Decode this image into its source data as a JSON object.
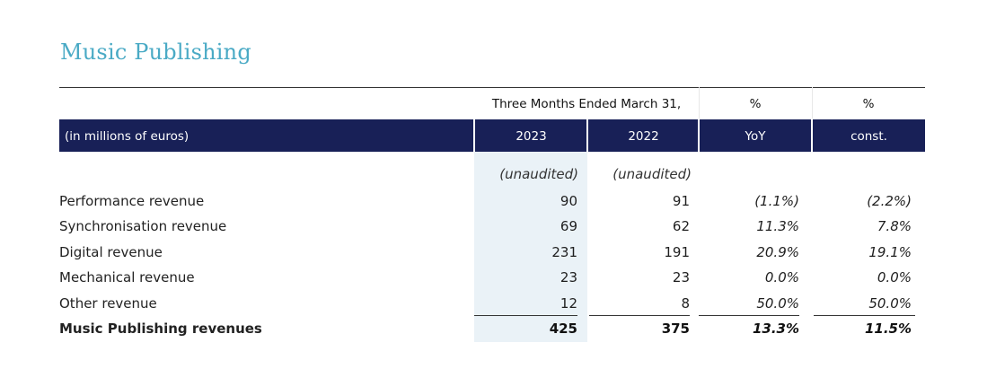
{
  "title": "Music Publishing",
  "header": {
    "period": "Three Months Ended March 31,",
    "pct_yoy": "%",
    "pct_const": "%",
    "units": "(in millions of euros)",
    "col_2023": "2023",
    "col_2022": "2022",
    "col_yoy": "YoY",
    "col_const": "const.",
    "unaudited_2023": "(unaudited)",
    "unaudited_2022": "(unaudited)"
  },
  "rows": [
    {
      "label": "Performance revenue",
      "v2023": "90",
      "v2022": "91",
      "yoy": "(1.1%)",
      "const": "(2.2%)"
    },
    {
      "label": "Synchronisation revenue",
      "v2023": "69",
      "v2022": "62",
      "yoy": "11.3%",
      "const": "7.8%"
    },
    {
      "label": "Digital revenue",
      "v2023": "231",
      "v2022": "191",
      "yoy": "20.9%",
      "const": "19.1%"
    },
    {
      "label": "Mechanical revenue",
      "v2023": "23",
      "v2022": "23",
      "yoy": "0.0%",
      "const": "0.0%"
    },
    {
      "label": "Other revenue",
      "v2023": "12",
      "v2022": "8",
      "yoy": "50.0%",
      "const": "50.0%"
    },
    {
      "label": "Music Publishing revenues",
      "v2023": "425",
      "v2022": "375",
      "yoy": "13.3%",
      "const": "11.5%"
    }
  ],
  "colors": {
    "title": "#4aaac5",
    "header_bar": "#182057",
    "shade_2023": "#eaf2f7"
  }
}
